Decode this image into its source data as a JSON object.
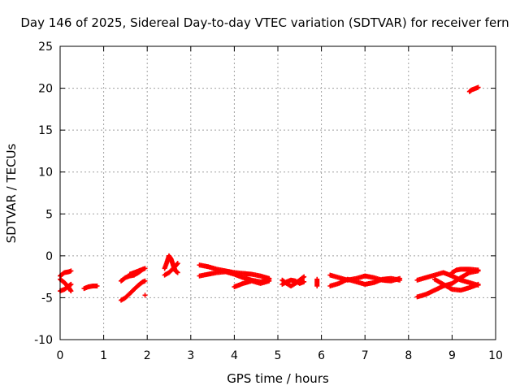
{
  "chart_data": {
    "type": "scatter",
    "title": "Day 146 of 2025, Sidereal Day-to-day VTEC variation (SDTVAR) for receiver fern",
    "xlabel": "GPS time / hours",
    "ylabel": "SDTVAR / TECUs",
    "xlim": [
      0,
      10
    ],
    "ylim": [
      -10,
      25
    ],
    "xticks": [
      0,
      1,
      2,
      3,
      4,
      5,
      6,
      7,
      8,
      9,
      10
    ],
    "yticks": [
      -10,
      -5,
      0,
      5,
      10,
      15,
      20,
      25
    ],
    "grid": true,
    "marker": "plus",
    "color": "#ff0000",
    "segments": [
      {
        "x": [
          0.0,
          0.1,
          0.2,
          0.25
        ],
        "y": [
          -2.4,
          -2.0,
          -1.9,
          -1.8
        ]
      },
      {
        "x": [
          0.0,
          0.1,
          0.2,
          0.25
        ],
        "y": [
          -2.8,
          -3.2,
          -3.8,
          -4.2
        ]
      },
      {
        "x": [
          0.0,
          0.1,
          0.2,
          0.25
        ],
        "y": [
          -4.2,
          -4.0,
          -3.6,
          -3.4
        ]
      },
      {
        "x": [
          0.55,
          0.65,
          0.75,
          0.85
        ],
        "y": [
          -3.9,
          -3.7,
          -3.6,
          -3.6
        ]
      },
      {
        "x": [
          1.4,
          1.5,
          1.6,
          1.7,
          1.8,
          1.9,
          1.95
        ],
        "y": [
          -5.3,
          -5.0,
          -4.5,
          -4.0,
          -3.5,
          -3.1,
          -3.0
        ]
      },
      {
        "x": [
          1.4,
          1.5,
          1.6,
          1.7,
          1.8,
          1.9,
          1.95
        ],
        "y": [
          -3.0,
          -2.6,
          -2.4,
          -2.3,
          -2.0,
          -1.6,
          -1.5
        ]
      },
      {
        "x": [
          1.6,
          1.7,
          1.8,
          1.9
        ],
        "y": [
          -2.2,
          -2.0,
          -1.8,
          -1.6
        ]
      },
      {
        "x": [
          1.95
        ],
        "y": [
          -4.7
        ]
      },
      {
        "x": [
          2.4,
          2.45,
          2.5,
          2.55,
          2.6,
          2.65,
          2.7
        ],
        "y": [
          -1.5,
          -0.8,
          0.0,
          -0.4,
          -1.2,
          -1.8,
          -2.0
        ]
      },
      {
        "x": [
          2.4,
          2.5,
          2.6,
          2.7
        ],
        "y": [
          -2.3,
          -2.0,
          -1.5,
          -0.9
        ]
      },
      {
        "x": [
          3.2,
          3.4,
          3.6,
          3.8,
          4.0,
          4.2,
          4.4,
          4.6,
          4.8
        ],
        "y": [
          -1.1,
          -1.3,
          -1.6,
          -1.8,
          -2.0,
          -2.1,
          -2.2,
          -2.4,
          -2.7
        ]
      },
      {
        "x": [
          3.2,
          3.4,
          3.6,
          3.8,
          4.0,
          4.2,
          4.4,
          4.6,
          4.8
        ],
        "y": [
          -2.4,
          -2.2,
          -2.0,
          -1.9,
          -2.2,
          -2.6,
          -2.9,
          -3.1,
          -2.8
        ]
      },
      {
        "x": [
          4.0,
          4.2,
          4.4,
          4.6,
          4.8
        ],
        "y": [
          -3.7,
          -3.3,
          -3.0,
          -3.3,
          -3.0
        ]
      },
      {
        "x": [
          5.1,
          5.2,
          5.3,
          5.4,
          5.5,
          5.6
        ],
        "y": [
          -2.9,
          -3.3,
          -3.6,
          -3.3,
          -2.9,
          -2.5
        ]
      },
      {
        "x": [
          5.1,
          5.2,
          5.3,
          5.4,
          5.5,
          5.6
        ],
        "y": [
          -3.4,
          -3.1,
          -2.9,
          -3.0,
          -3.3,
          -3.1
        ]
      },
      {
        "x": [
          5.9,
          5.9,
          5.9
        ],
        "y": [
          -2.8,
          -3.1,
          -3.6
        ]
      },
      {
        "x": [
          6.2,
          6.4,
          6.6,
          6.8,
          7.0,
          7.2,
          7.4,
          7.6,
          7.8
        ],
        "y": [
          -2.3,
          -2.6,
          -2.9,
          -2.7,
          -2.4,
          -2.6,
          -2.9,
          -3.0,
          -2.7
        ]
      },
      {
        "x": [
          6.2,
          6.4,
          6.6,
          6.8,
          7.0,
          7.2,
          7.4,
          7.6,
          7.8
        ],
        "y": [
          -3.6,
          -3.3,
          -2.8,
          -3.1,
          -3.4,
          -3.2,
          -2.8,
          -2.7,
          -2.9
        ]
      },
      {
        "x": [
          8.2,
          8.4,
          8.6,
          8.8,
          9.0,
          9.2,
          9.4,
          9.6
        ],
        "y": [
          -2.9,
          -2.6,
          -2.3,
          -2.0,
          -2.4,
          -2.9,
          -3.2,
          -3.5
        ]
      },
      {
        "x": [
          8.2,
          8.4,
          8.6,
          8.8,
          9.0,
          9.2,
          9.4,
          9.6
        ],
        "y": [
          -4.9,
          -4.6,
          -4.1,
          -3.6,
          -3.3,
          -2.6,
          -2.0,
          -1.8
        ]
      },
      {
        "x": [
          8.6,
          8.8,
          9.0,
          9.2,
          9.4,
          9.6
        ],
        "y": [
          -2.8,
          -3.4,
          -4.0,
          -4.1,
          -3.8,
          -3.4
        ]
      },
      {
        "x": [
          9.0,
          9.1,
          9.2,
          9.4,
          9.6
        ],
        "y": [
          -2.0,
          -1.7,
          -1.6,
          -1.6,
          -1.7
        ]
      },
      {
        "x": [
          9.4,
          9.45,
          9.5,
          9.55,
          9.6
        ],
        "y": [
          19.6,
          19.8,
          19.9,
          20.0,
          20.1
        ]
      }
    ]
  }
}
